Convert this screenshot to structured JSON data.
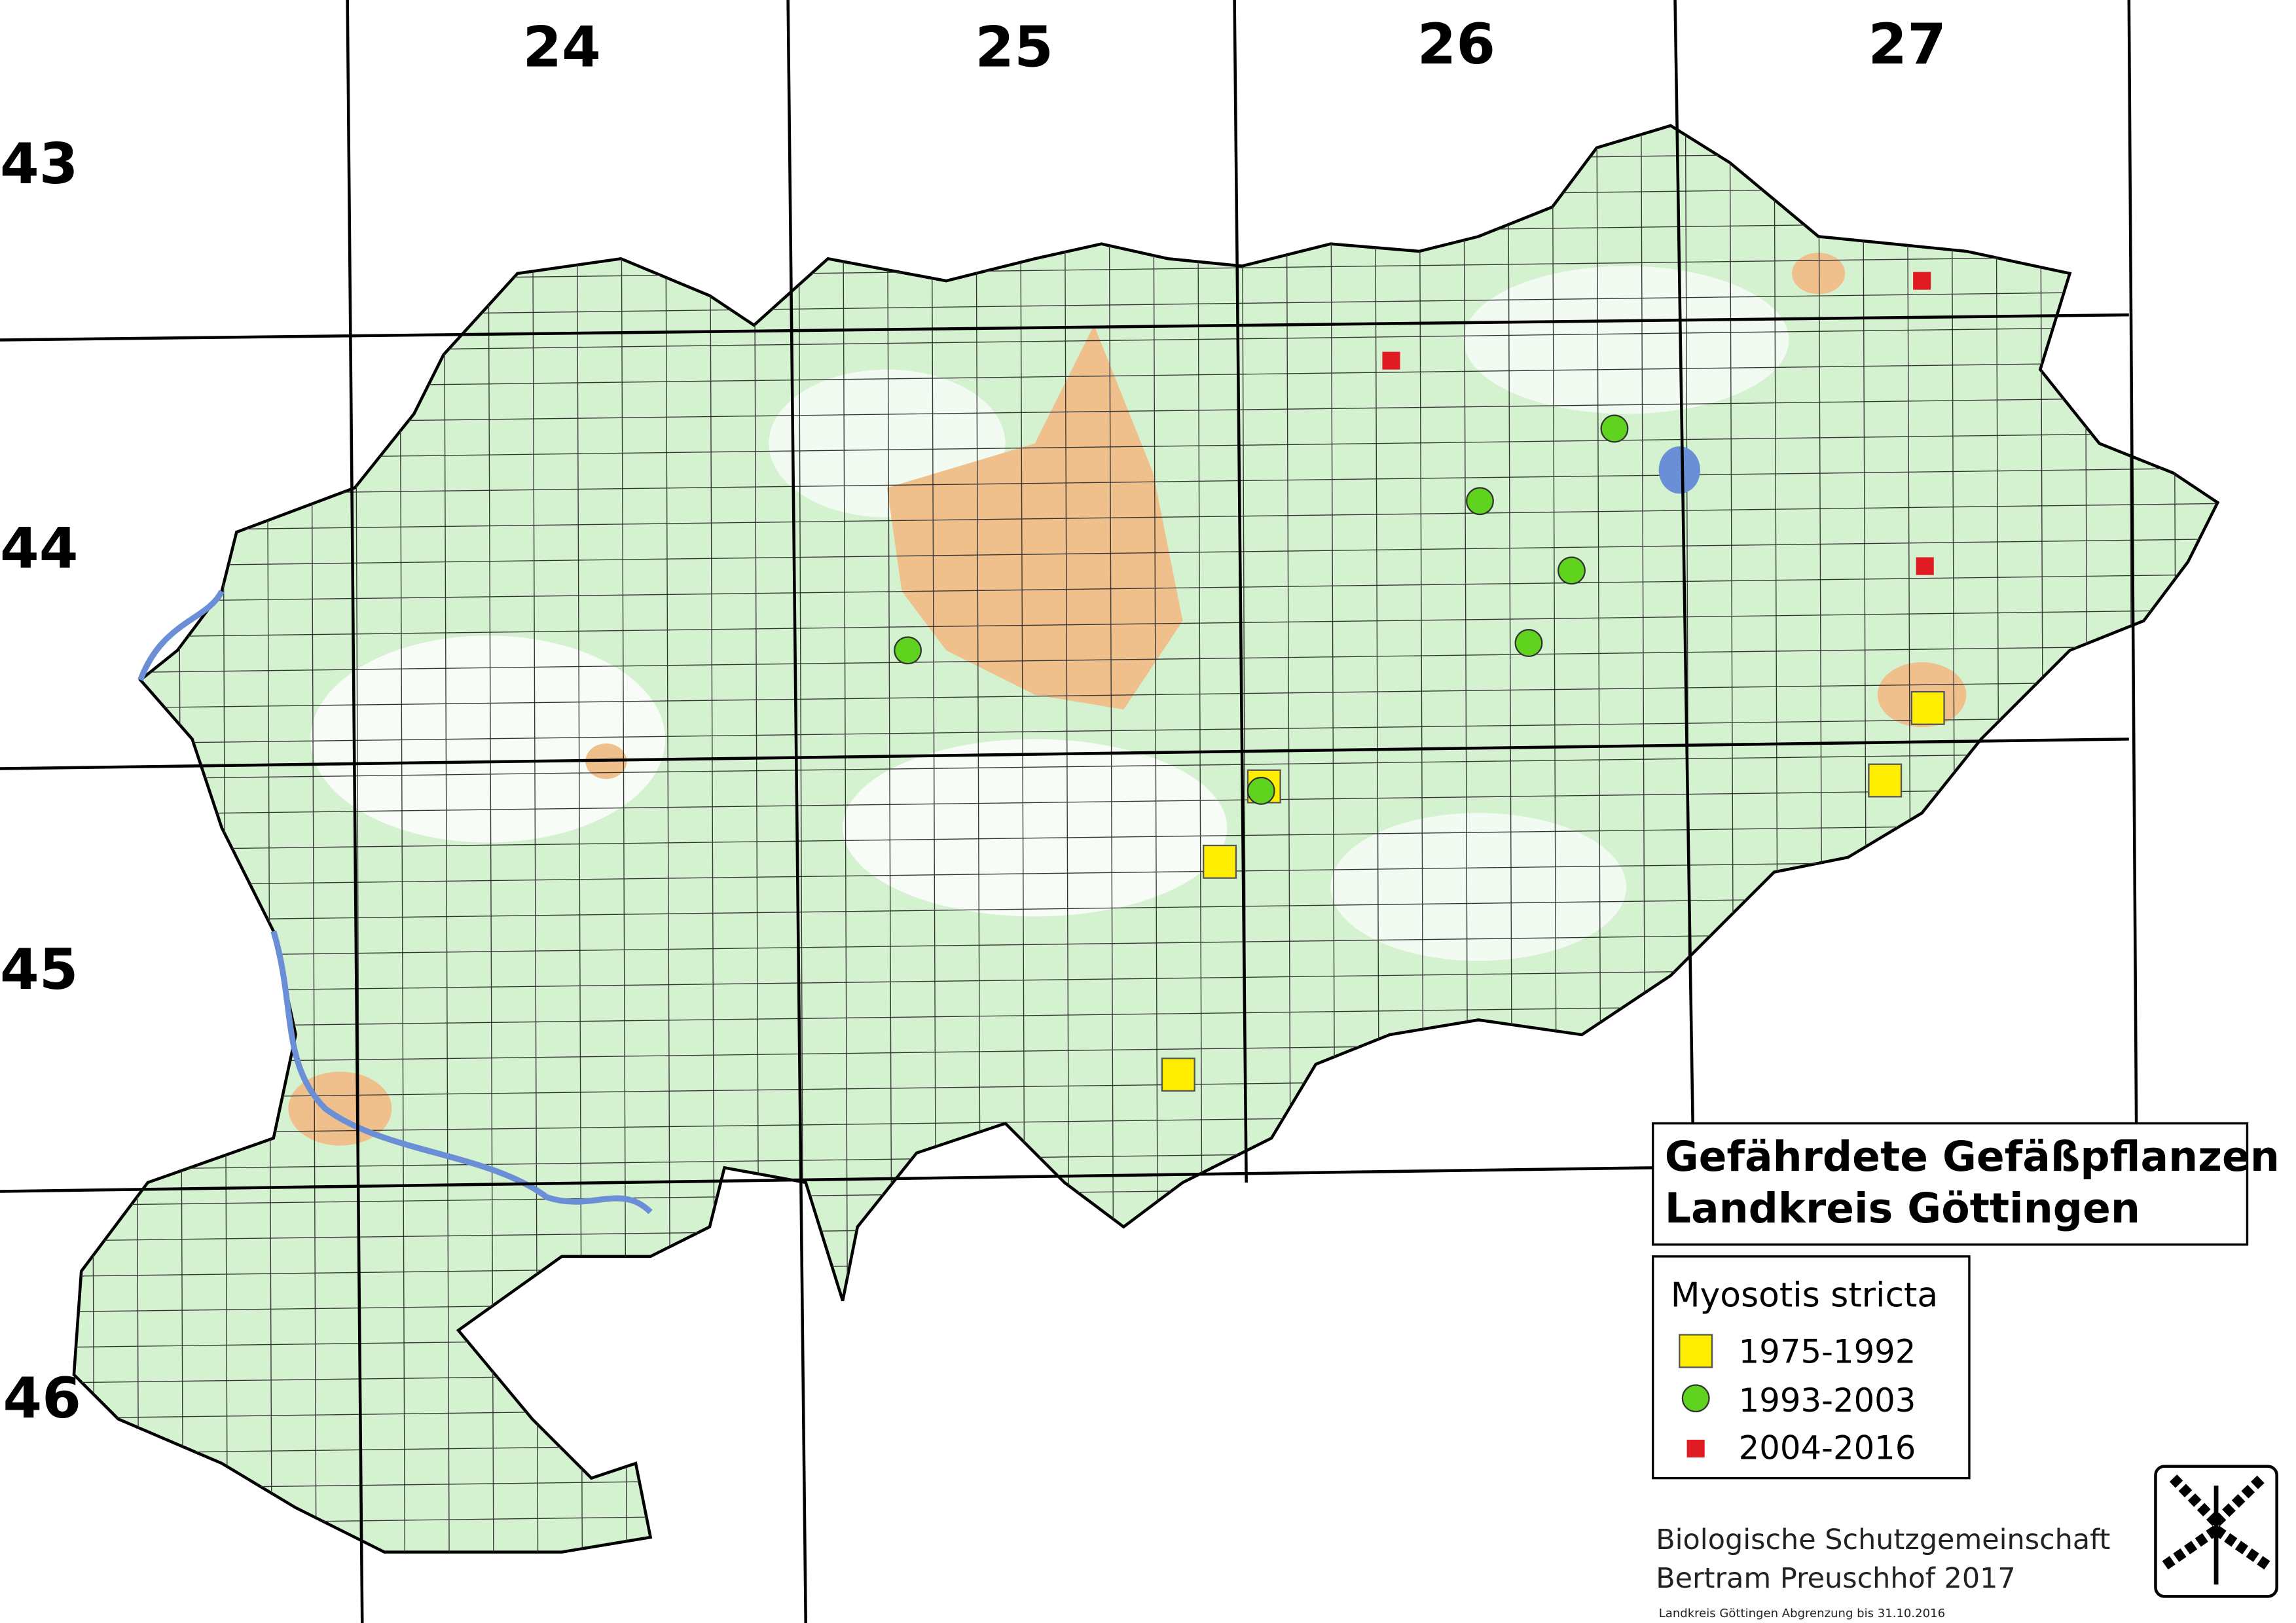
{
  "grid_columns": [
    "24",
    "25",
    "26",
    "27"
  ],
  "grid_rows": [
    "43",
    "44",
    "45",
    "46"
  ],
  "title": [
    "Gefährdete Gefäßpflanzen",
    "Landkreis Göttingen"
  ],
  "legend": {
    "species": "Myosotis stricta",
    "entries": [
      "1975-1992",
      "1993-2003",
      "2004-2016"
    ]
  },
  "credits": [
    "Biologische Schutzgemeinschaft",
    "Bertram Preuschhof 2017"
  ],
  "note": "Landkreis Göttingen Abgrenzung bis 31.10.2016"
}
